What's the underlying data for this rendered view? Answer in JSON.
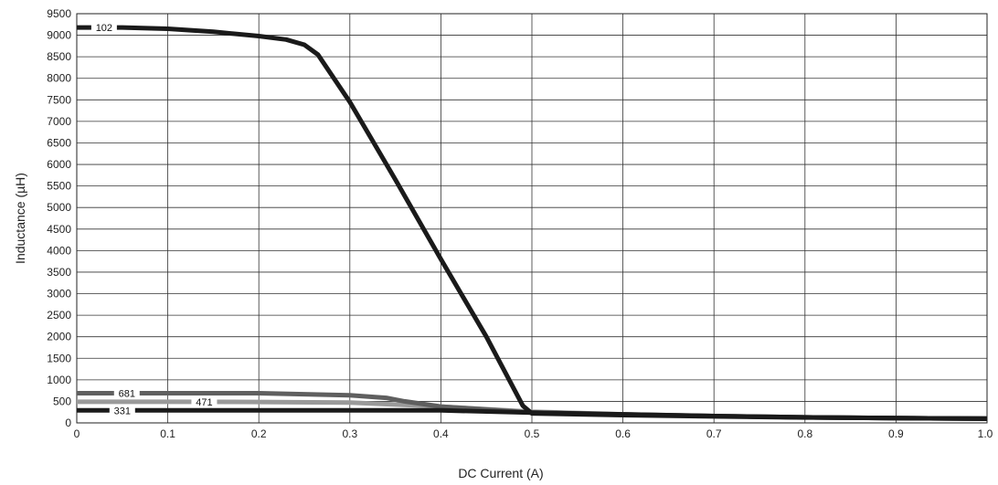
{
  "chart_data": {
    "type": "line",
    "xlabel": "DC Current (A)",
    "ylabel": "Inductance (µH)",
    "xlim": [
      0,
      1.0
    ],
    "ylim": [
      0,
      9500
    ],
    "grid": true,
    "x_ticks": [
      "0",
      "0.1",
      "0.2",
      "0.3",
      "0.4",
      "0.5",
      "0.6",
      "0.7",
      "0.8",
      "0.9",
      "1.0"
    ],
    "y_ticks": [
      "0",
      "500",
      "1000",
      "1500",
      "2000",
      "2500",
      "3000",
      "3500",
      "4000",
      "4500",
      "5000",
      "5500",
      "6000",
      "6500",
      "7000",
      "7500",
      "8000",
      "8500",
      "9000",
      "9500"
    ],
    "series": [
      {
        "name": "471",
        "color": "#9a9a9a",
        "points": [
          [
            0,
            490
          ],
          [
            0.1,
            490
          ],
          [
            0.2,
            485
          ],
          [
            0.3,
            470
          ],
          [
            0.38,
            400
          ],
          [
            0.5,
            260
          ],
          [
            0.6,
            200
          ],
          [
            0.7,
            160
          ],
          [
            0.8,
            130
          ],
          [
            0.9,
            110
          ],
          [
            1.0,
            100
          ]
        ],
        "label_x": 0.14
      },
      {
        "name": "681",
        "color": "#5f5f5f",
        "points": [
          [
            0,
            690
          ],
          [
            0.1,
            690
          ],
          [
            0.2,
            690
          ],
          [
            0.3,
            640
          ],
          [
            0.34,
            580
          ],
          [
            0.36,
            500
          ],
          [
            0.4,
            380
          ],
          [
            0.5,
            240
          ],
          [
            0.6,
            195
          ],
          [
            0.7,
            160
          ],
          [
            0.8,
            130
          ],
          [
            0.9,
            110
          ],
          [
            1.0,
            100
          ]
        ],
        "label_x": 0.055
      },
      {
        "name": "331",
        "color": "#1a1a1a",
        "points": [
          [
            0,
            290
          ],
          [
            0.1,
            290
          ],
          [
            0.2,
            290
          ],
          [
            0.3,
            290
          ],
          [
            0.4,
            290
          ],
          [
            0.5,
            240
          ],
          [
            0.6,
            200
          ],
          [
            0.7,
            160
          ],
          [
            0.8,
            130
          ],
          [
            0.9,
            110
          ],
          [
            1.0,
            100
          ]
        ],
        "label_x": 0.05
      },
      {
        "name": "102",
        "color": "#1a1a1a",
        "points": [
          [
            0,
            9180
          ],
          [
            0.05,
            9180
          ],
          [
            0.1,
            9150
          ],
          [
            0.15,
            9080
          ],
          [
            0.2,
            8980
          ],
          [
            0.23,
            8900
          ],
          [
            0.25,
            8780
          ],
          [
            0.265,
            8550
          ],
          [
            0.3,
            7450
          ],
          [
            0.35,
            5650
          ],
          [
            0.4,
            3800
          ],
          [
            0.45,
            2000
          ],
          [
            0.49,
            400
          ],
          [
            0.5,
            220
          ],
          [
            0.6,
            180
          ],
          [
            0.7,
            150
          ],
          [
            0.8,
            125
          ],
          [
            0.9,
            110
          ],
          [
            1.0,
            95
          ]
        ],
        "label_x": 0.03
      }
    ]
  }
}
